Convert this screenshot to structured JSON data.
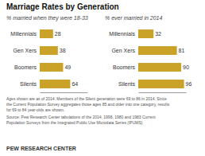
{
  "title": "Marriage Rates by Generation",
  "annotations": [
    "Ages shown are as of 2014. Members of the Silent generation were 69 to 86 in 2014. Since",
    "the Current Population Survey aggregates those ages 85 and older into one category, results",
    "for 69 to 84 year-olds are shown.",
    "Source: Pew Research Center tabulations of the 2014, 1998, 1980 and 1983 Current",
    "Population Surveys from the Integrated Public Use Microdata Series (IPUMS)",
    "PEW RESEARCH CENTER"
  ],
  "chart_data": [
    {
      "type": "bar",
      "orientation": "horizontal",
      "subtitle": "% married when they were 18-33",
      "categories": [
        "Millennials",
        "Gen Xers",
        "Boomers",
        "Silents"
      ],
      "values": [
        28,
        38,
        49,
        64
      ],
      "color": "#C9A227",
      "xlim": [
        0,
        100
      ],
      "tick_labels": "y",
      "data_labels": true,
      "grid": false
    },
    {
      "type": "bar",
      "orientation": "horizontal",
      "subtitle": "% ever married in 2014",
      "categories": [
        "Millennials",
        "Gen Xers",
        "Boomers",
        "Silents"
      ],
      "values": [
        32,
        81,
        90,
        96
      ],
      "color": "#C9A227",
      "xlim": [
        0,
        100
      ],
      "tick_labels": "y",
      "data_labels": true,
      "grid": false
    }
  ]
}
